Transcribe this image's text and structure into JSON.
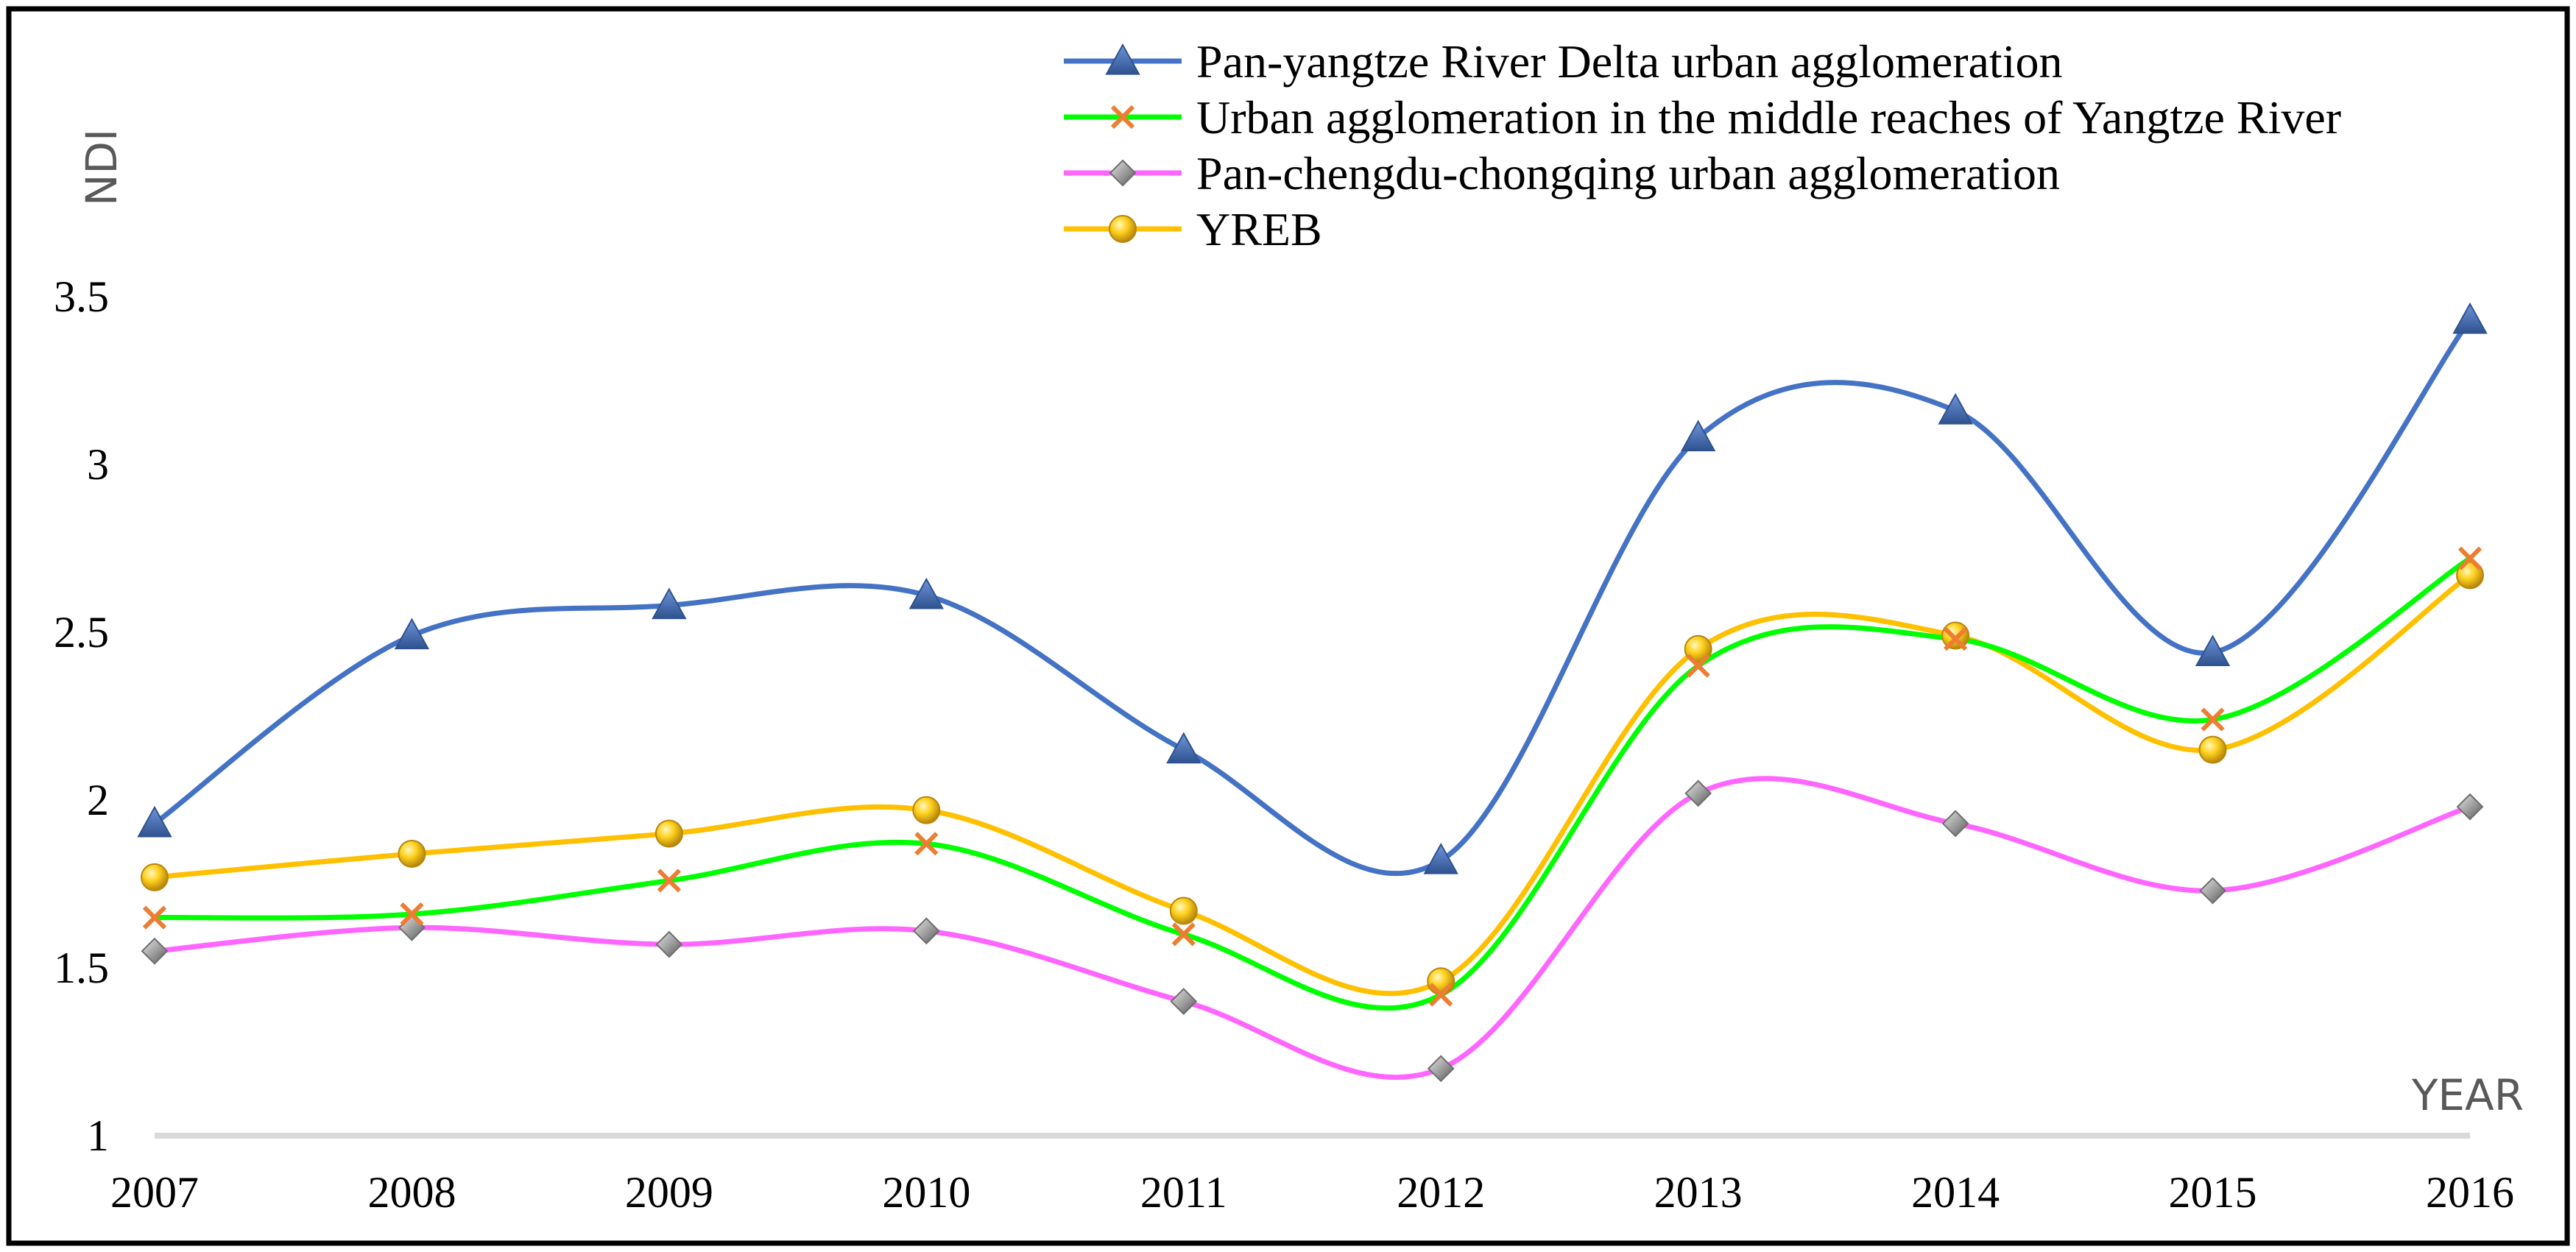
{
  "chart_data": {
    "type": "line",
    "title": "",
    "xlabel": "YEAR",
    "ylabel": "NDI",
    "ylim": [
      1,
      3.5
    ],
    "yticks": [
      "1",
      "1.5",
      "2",
      "2.5",
      "3",
      "3.5"
    ],
    "grid": false,
    "legend_position": "top-right",
    "categories": [
      "2007",
      "2008",
      "2009",
      "2010",
      "2011",
      "2012",
      "2013",
      "2014",
      "2015",
      "2016"
    ],
    "series": [
      {
        "name": "Pan-yangtze River Delta urban agglomeration",
        "color": "#4472C4",
        "marker": "triangle",
        "values": [
          1.93,
          2.49,
          2.58,
          2.61,
          2.15,
          1.82,
          3.08,
          3.16,
          2.44,
          3.43
        ]
      },
      {
        "name": "Urban agglomeration in the middle reaches of Yangtze River",
        "color": "#00FF00",
        "marker": "x",
        "values": [
          1.65,
          1.66,
          1.76,
          1.87,
          1.6,
          1.42,
          2.4,
          2.48,
          2.24,
          2.72
        ]
      },
      {
        "name": "Pan-chengdu-chongqing urban agglomeration",
        "color": "#FF66FF",
        "marker": "diamond",
        "values": [
          1.55,
          1.62,
          1.57,
          1.61,
          1.4,
          1.2,
          2.02,
          1.93,
          1.73,
          1.98
        ]
      },
      {
        "name": "YREB",
        "color": "#FFC000",
        "marker": "circle",
        "values": [
          1.77,
          1.84,
          1.9,
          1.97,
          1.67,
          1.46,
          2.45,
          2.49,
          2.15,
          2.67
        ]
      }
    ]
  }
}
